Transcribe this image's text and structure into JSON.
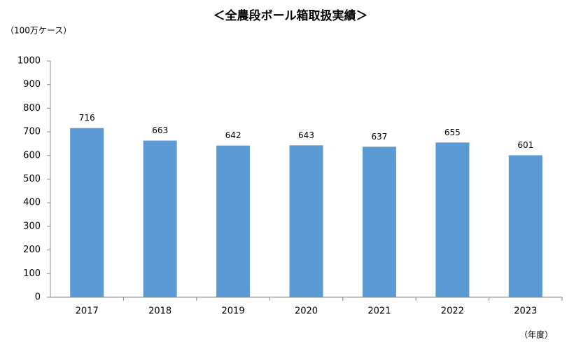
{
  "chart_data": {
    "type": "bar",
    "title": "＜全農段ボール箱取扱実績＞",
    "y_label": "（100万ケース）",
    "x_label": "（年度）",
    "categories": [
      "2017",
      "2018",
      "2019",
      "2020",
      "2021",
      "2022",
      "2023"
    ],
    "values": [
      716,
      663,
      642,
      643,
      637,
      655,
      601
    ],
    "color": "#5b9bd5",
    "ylim": [
      0,
      1000
    ],
    "yticks": [
      0,
      100,
      200,
      300,
      400,
      500,
      600,
      700,
      800,
      900,
      1000
    ],
    "grid": false
  }
}
